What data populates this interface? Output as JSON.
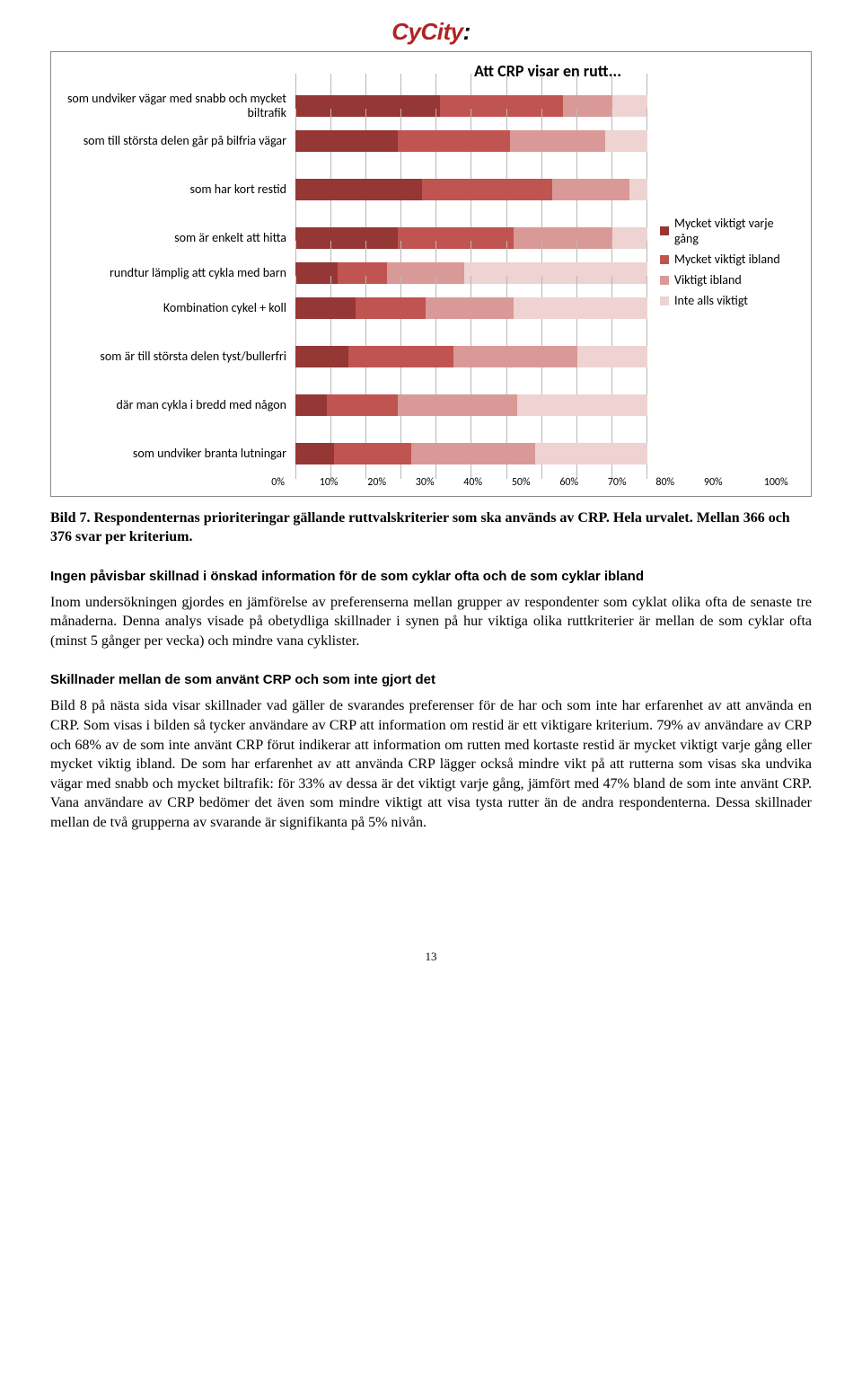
{
  "logo": {
    "text": "CyCity:",
    "red": "#b22222",
    "black": "#000000"
  },
  "chart": {
    "title": "Att CRP visar en rutt...",
    "categories": [
      {
        "label": "som undviker vägar med snabb och mycket biltrafik",
        "values": [
          41,
          35,
          14,
          10
        ],
        "gap": false
      },
      {
        "label": "som till största delen går på bilfria vägar",
        "values": [
          29,
          32,
          27,
          12
        ],
        "gap": true
      },
      {
        "label": "som har kort restid",
        "values": [
          36,
          37,
          22,
          5
        ],
        "gap": true
      },
      {
        "label": "som är enkelt att hitta",
        "values": [
          29,
          33,
          28,
          10
        ],
        "gap": false
      },
      {
        "label": "rundtur lämplig att cykla med barn",
        "values": [
          12,
          14,
          22,
          52
        ],
        "gap": false
      },
      {
        "label": "Kombination cykel + koll",
        "values": [
          17,
          20,
          25,
          38
        ],
        "gap": true
      },
      {
        "label": "som är till största delen tyst/bullerfri",
        "values": [
          15,
          30,
          35,
          20
        ],
        "gap": true
      },
      {
        "label": "där man cykla i bredd med någon",
        "values": [
          9,
          20,
          34,
          37
        ],
        "gap": true
      },
      {
        "label": "som undviker branta lutningar",
        "values": [
          11,
          22,
          35,
          32
        ],
        "gap": false
      }
    ],
    "colors": [
      "#953735",
      "#c05450",
      "#d99a97",
      "#eed3d2"
    ],
    "x_ticks": [
      "0%",
      "10%",
      "20%",
      "30%",
      "40%",
      "50%",
      "60%",
      "70%",
      "80%",
      "90%",
      "100%"
    ],
    "legend": [
      {
        "label": "Mycket viktigt varje gång",
        "color": "#953735"
      },
      {
        "label": "Mycket viktigt ibland",
        "color": "#c05450"
      },
      {
        "label": "Viktigt ibland",
        "color": "#d99a97"
      },
      {
        "label": "Inte alls viktigt",
        "color": "#eed3d2"
      }
    ]
  },
  "caption": {
    "prefix": "Bild 7. Respondenternas prioriteringar gällande ruttvalskriterier som ska används  av CRP. Hela urvalet. Mellan 366 och 376 svar per kriterium."
  },
  "section1_title": "Ingen påvisbar skillnad i önskad information för de som cyklar ofta och de som cyklar ibland",
  "section1_body": "Inom undersökningen gjordes en jämförelse av preferenserna mellan grupper av respondenter som cyklat olika ofta de senaste tre månaderna. Denna analys visade på obetydliga skillnader i synen på hur viktiga olika ruttkriterier är mellan de som cyklar ofta (minst 5 gånger per vecka) och mindre vana cyklister.",
  "section2_title": "Skillnader mellan de som använt CRP och som inte gjort det",
  "section2_body": "Bild 8 på nästa sida visar skillnader vad gäller de svarandes preferenser för de har och som inte har erfarenhet av att använda en CRP. Som visas i bilden så tycker användare av CRP att information om restid är ett viktigare kriterium.  79% av användare av CRP och 68% av de som inte använt CRP förut indikerar att information om rutten med kortaste restid är mycket viktigt varje gång eller mycket viktig ibland. De som har erfarenhet av att använda CRP lägger också mindre vikt på att rutterna som visas ska undvika vägar med snabb och mycket biltrafik: för 33% av dessa är det viktigt varje gång, jämfört med 47% bland de som inte använt CRP.  Vana användare av CRP bedömer det även som mindre viktigt att visa tysta rutter än de andra respondenterna. Dessa skillnader mellan de två grupperna av svarande är signifikanta på 5% nivån.",
  "page_number": "13"
}
